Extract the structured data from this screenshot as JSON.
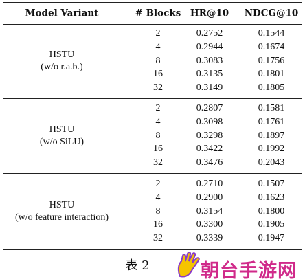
{
  "table": {
    "header": [
      "Model Variant",
      "# Blocks",
      "HR@10",
      "NDCG@10"
    ],
    "groups": [
      {
        "model": [
          "HSTU",
          "(w/o r.a.b.)"
        ],
        "rows": [
          [
            "2",
            "0.2752",
            "0.1544"
          ],
          [
            "4",
            "0.2944",
            "0.1674"
          ],
          [
            "8",
            "0.3083",
            "0.1756"
          ],
          [
            "16",
            "0.3135",
            "0.1801"
          ],
          [
            "32",
            "0.3149",
            "0.1805"
          ]
        ]
      },
      {
        "model": [
          "HSTU",
          "(w/o SiLU)"
        ],
        "rows": [
          [
            "2",
            "0.2807",
            "0.1581"
          ],
          [
            "4",
            "0.3098",
            "0.1761"
          ],
          [
            "8",
            "0.3298",
            "0.1897"
          ],
          [
            "16",
            "0.3422",
            "0.1992"
          ],
          [
            "32",
            "0.3476",
            "0.2043"
          ]
        ]
      },
      {
        "model": [
          "HSTU",
          "(w/o feature interaction)"
        ],
        "rows": [
          [
            "2",
            "0.2710",
            "0.1507"
          ],
          [
            "4",
            "0.2900",
            "0.1623"
          ],
          [
            "8",
            "0.3154",
            "0.1800"
          ],
          [
            "16",
            "0.3300",
            "0.1905"
          ],
          [
            "32",
            "0.3339",
            "0.1947"
          ]
        ]
      }
    ],
    "caption": "表 2",
    "watermark": "朝台手游网"
  }
}
